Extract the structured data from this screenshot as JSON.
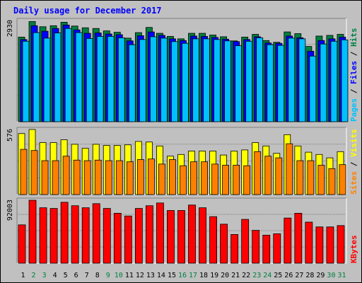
{
  "chart_data": [
    {
      "type": "bar",
      "title": "Daily usage for December 2017",
      "categories": [
        "1",
        "2",
        "3",
        "4",
        "5",
        "6",
        "7",
        "8",
        "9",
        "10",
        "11",
        "12",
        "13",
        "14",
        "15",
        "16",
        "17",
        "18",
        "19",
        "20",
        "21",
        "22",
        "23",
        "24",
        "25",
        "26",
        "27",
        "28",
        "29",
        "30",
        "31"
      ],
      "weekend_days": [
        "2",
        "3",
        "9",
        "10",
        "16",
        "17",
        "23",
        "24",
        "30",
        "31"
      ],
      "ymax_label": "2930",
      "ylim": [
        0,
        2930
      ],
      "legend": [
        {
          "label": "Pages",
          "color": "#00c0ff"
        },
        {
          "label": "Files",
          "color": "#0000ff"
        },
        {
          "label": "Hits",
          "color": "#008040"
        }
      ],
      "series": [
        {
          "name": "Hits",
          "color": "#008040",
          "values": [
            2450,
            2900,
            2750,
            2780,
            2880,
            2770,
            2720,
            2700,
            2630,
            2590,
            2420,
            2580,
            2730,
            2560,
            2470,
            2400,
            2560,
            2560,
            2510,
            2460,
            2340,
            2450,
            2530,
            2350,
            2300,
            2600,
            2550,
            2180,
            2480,
            2500,
            2530
          ]
        },
        {
          "name": "Files",
          "color": "#0000ff",
          "values": [
            2380,
            2780,
            2620,
            2700,
            2800,
            2660,
            2560,
            2570,
            2540,
            2520,
            2340,
            2490,
            2600,
            2500,
            2400,
            2350,
            2480,
            2470,
            2440,
            2390,
            2320,
            2380,
            2460,
            2280,
            2270,
            2480,
            2430,
            2040,
            2350,
            2400,
            2450
          ]
        },
        {
          "name": "Pages",
          "color": "#00c0ff",
          "values": [
            2330,
            2580,
            2420,
            2570,
            2700,
            2580,
            2410,
            2470,
            2470,
            2430,
            2230,
            2380,
            2460,
            2420,
            2320,
            2270,
            2400,
            2400,
            2380,
            2340,
            2200,
            2330,
            2430,
            2230,
            2210,
            2420,
            2400,
            1900,
            2250,
            2330,
            2370
          ]
        }
      ]
    },
    {
      "type": "bar",
      "ymax_label": "576",
      "ylim": [
        0,
        576
      ],
      "legend": [
        {
          "label": "Sites",
          "color": "#ff8000"
        },
        {
          "label": "Visits",
          "color": "#ffff00"
        }
      ],
      "series": [
        {
          "name": "Visits",
          "color": "#ffff00",
          "values": [
            540,
            576,
            460,
            460,
            485,
            445,
            410,
            445,
            435,
            435,
            440,
            470,
            465,
            430,
            340,
            355,
            385,
            385,
            385,
            350,
            385,
            395,
            460,
            430,
            365,
            530,
            430,
            375,
            355,
            325,
            380
          ]
        },
        {
          "name": "Sites",
          "color": "#ff8000",
          "values": [
            400,
            390,
            300,
            300,
            340,
            305,
            300,
            305,
            300,
            300,
            290,
            310,
            315,
            270,
            310,
            255,
            290,
            290,
            270,
            260,
            260,
            255,
            380,
            340,
            325,
            450,
            300,
            300,
            260,
            230,
            265
          ]
        }
      ]
    },
    {
      "type": "bar",
      "ymax_label": "92003",
      "ylim": [
        0,
        92003
      ],
      "legend": [
        {
          "label": "KBytes",
          "color": "#ff0000"
        }
      ],
      "series": [
        {
          "name": "KBytes",
          "color": "#ff0000",
          "values": [
            56000,
            92003,
            81000,
            80000,
            89000,
            84000,
            81000,
            87000,
            80000,
            73000,
            69000,
            80000,
            84000,
            88000,
            77000,
            77000,
            85000,
            81000,
            68000,
            57000,
            42000,
            64000,
            48000,
            41000,
            43000,
            66000,
            73000,
            60000,
            53000,
            53000,
            55000
          ]
        }
      ]
    }
  ]
}
